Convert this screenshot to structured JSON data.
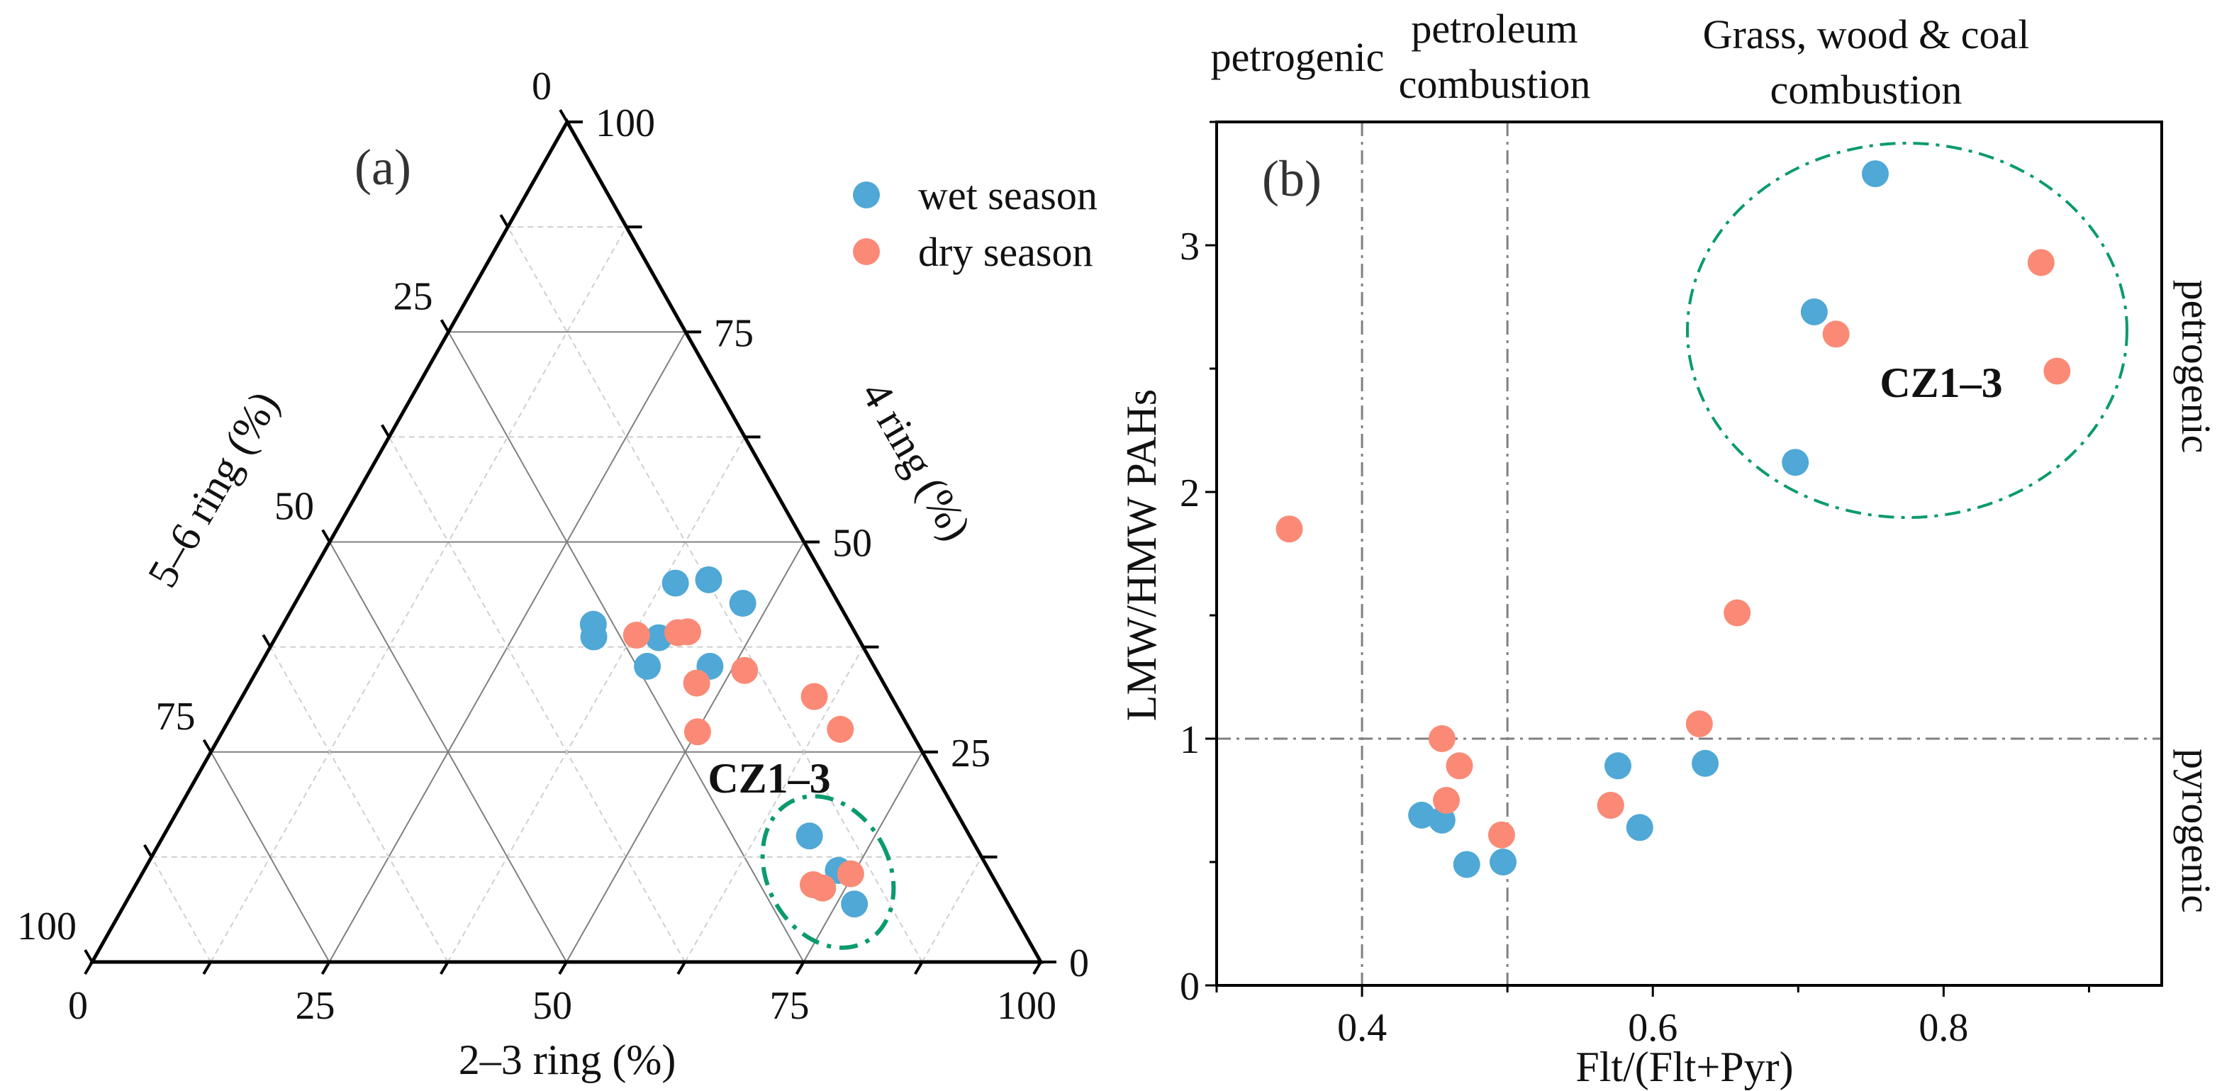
{
  "colors": {
    "wet": "#4FA8D5",
    "dry": "#FA8A76",
    "cluster": "#0A9A6E",
    "grid": "#808080"
  },
  "chart_data": [
    {
      "type": "scatter",
      "subtype": "ternary",
      "panel_label": "(a)",
      "axes": {
        "bottom": {
          "label": "2–3 ring (%)",
          "ticks": [
            "0",
            "25",
            "50",
            "75",
            "100"
          ]
        },
        "right": {
          "label": "4 ring (%)",
          "ticks": [
            "0",
            "25",
            "50",
            "75",
            "100"
          ]
        },
        "left": {
          "label": "5–6 ring (%)",
          "ticks": [
            "0",
            "25",
            "50",
            "75",
            "100"
          ]
        }
      },
      "grid": true,
      "legend": {
        "placement": "top-right",
        "entries": [
          "wet season",
          "dry season"
        ]
      },
      "annotation": "CZ1–3",
      "series": [
        {
          "name": "wet season",
          "points": [
            {
              "ring23": 32.7,
              "ring4": 40.2,
              "ring56": 27.1
            },
            {
              "ring23": 33.5,
              "ring4": 38.7,
              "ring56": 27.8
            },
            {
              "ring23": 38.9,
              "ring4": 45.1,
              "ring56": 16.0
            },
            {
              "ring23": 42.2,
              "ring4": 45.5,
              "ring56": 12.3
            },
            {
              "ring23": 47.2,
              "ring4": 42.7,
              "ring56": 10.1
            },
            {
              "ring23": 40.4,
              "ring4": 38.6,
              "ring56": 21.0
            },
            {
              "ring23": 40.9,
              "ring4": 35.2,
              "ring56": 23.9
            },
            {
              "ring23": 47.5,
              "ring4": 35.2,
              "ring56": 17.3
            },
            {
              "ring23": 68.1,
              "ring4": 15.0,
              "ring56": 16.9
            },
            {
              "ring23": 73.2,
              "ring4": 10.9,
              "ring56": 15.9
            },
            {
              "ring23": 76.9,
              "ring4": 6.9,
              "ring56": 16.2
            }
          ]
        },
        {
          "name": "dry season",
          "points": [
            {
              "ring23": 37.9,
              "ring4": 38.9,
              "ring56": 23.2
            },
            {
              "ring23": 42.1,
              "ring4": 39.2,
              "ring56": 18.7
            },
            {
              "ring23": 43.1,
              "ring4": 39.3,
              "ring56": 17.6
            },
            {
              "ring23": 47.1,
              "ring4": 33.2,
              "ring56": 19.7
            },
            {
              "ring23": 51.4,
              "ring4": 34.7,
              "ring56": 13.9
            },
            {
              "ring23": 50.1,
              "ring4": 27.4,
              "ring56": 22.5
            },
            {
              "ring23": 60.3,
              "ring4": 31.6,
              "ring56": 8.1
            },
            {
              "ring23": 65.0,
              "ring4": 27.7,
              "ring56": 7.3
            },
            {
              "ring23": 71.4,
              "ring4": 9.2,
              "ring56": 19.4
            },
            {
              "ring23": 72.6,
              "ring4": 8.8,
              "ring56": 18.6
            },
            {
              "ring23": 74.7,
              "ring4": 10.5,
              "ring56": 14.8
            }
          ]
        }
      ]
    },
    {
      "type": "scatter",
      "panel_label": "(b)",
      "xlabel": "Flt/(Flt+Pyr)",
      "ylabel": "LMW/HMW PAHs",
      "xlim": [
        0.3,
        0.95
      ],
      "ylim": [
        0,
        3.5
      ],
      "xticks": [
        0.4,
        0.6,
        0.8
      ],
      "xtick_labels": [
        "0.4",
        "0.6",
        "0.8"
      ],
      "yticks": [
        0,
        1,
        2,
        3
      ],
      "ytick_labels": [
        "0",
        "1",
        "2",
        "3"
      ],
      "reference_lines": {
        "x": [
          0.4,
          0.5
        ],
        "y": [
          1
        ]
      },
      "region_labels_top": [
        "petrogenic",
        "petroleum",
        "combustion",
        "Grass, wood & coal",
        "combustion"
      ],
      "region_labels_right": [
        "petrogenic",
        "pyrogenic"
      ],
      "annotation": "CZ1–3",
      "series": [
        {
          "name": "wet season",
          "x": [
            0.753,
            0.711,
            0.698,
            0.576,
            0.636,
            0.571,
            0.591,
            0.441,
            0.455,
            0.472,
            0.497
          ],
          "y": [
            3.29,
            2.73,
            2.12,
            0.89,
            0.9,
            0.73,
            0.64,
            0.69,
            0.67,
            0.49,
            0.5
          ]
        },
        {
          "name": "dry season",
          "x": [
            0.867,
            0.726,
            0.878,
            0.35,
            0.658,
            0.632,
            0.455,
            0.467,
            0.458,
            0.496,
            0.571
          ],
          "y": [
            2.93,
            2.64,
            2.49,
            1.85,
            1.51,
            1.06,
            1.0,
            0.89,
            0.75,
            0.61,
            0.73
          ]
        }
      ]
    }
  ]
}
